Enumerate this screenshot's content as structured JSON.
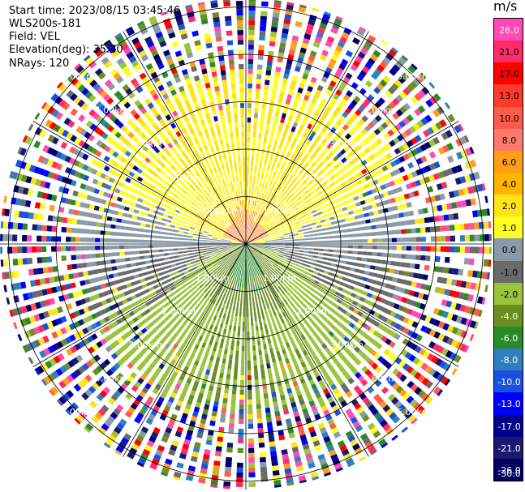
{
  "info": {
    "start_time": "Start time: 2023/08/15 03:45:46",
    "instrument": "WLS200s-181",
    "field": "Field: VEL",
    "elevation": "Elevation(deg): 35.30",
    "nrays": "NRays: 120"
  },
  "colorbar": {
    "unit": "m/s",
    "ticks": [
      "26.0",
      "21.0",
      "17.0",
      "13.0",
      "10.0",
      "8.0",
      "6.0",
      "4.0",
      "2.0",
      "1.0",
      "0.0",
      "-1.0",
      "-2.0",
      "-4.0",
      "-6.0",
      "-8.0",
      "-10.0",
      "-13.0",
      "-17.0",
      "-21.0",
      "-26.0",
      "-30.0"
    ],
    "colors": [
      "#ff49b4",
      "#ff2a6a",
      "#ff0000",
      "#ff3a2a",
      "#ff5a4a",
      "#ff7a6a",
      "#ff9e1a",
      "#ffb400",
      "#ffe21a",
      "#ffff22",
      "#8a9aa8",
      "#6a6a6a",
      "#9ac43a",
      "#6b8e23",
      "#2a8a2a",
      "#2f7fc0",
      "#1a50e0",
      "#0000ff",
      "#00008b",
      "#191970",
      "#000060"
    ]
  },
  "chart_data": {
    "type": "heatmap",
    "subtype": "ppi-radial-velocity",
    "nrays": 120,
    "range_ring_labels": [
      "1.00km",
      "2.00km",
      "3.00km",
      "4.00km",
      "5.00km"
    ],
    "range_rings_km": [
      1,
      2,
      3,
      4,
      5
    ],
    "spoke_angles_deg": [
      0,
      30,
      60,
      90,
      120,
      150,
      180,
      210,
      240,
      270,
      300,
      330
    ],
    "velocity_pattern": {
      "north_near_range": "2.0 to 6.0 m/s (orange core near 4 m/s)",
      "south_near_range": "-2.0 to -6.0 m/s (green core near -4 m/s)",
      "east_west": "0.0 to 1.0 m/s (grey)",
      "far_range": "noise across full scale"
    },
    "colorbar_range": [
      -30.0,
      26.0
    ]
  }
}
